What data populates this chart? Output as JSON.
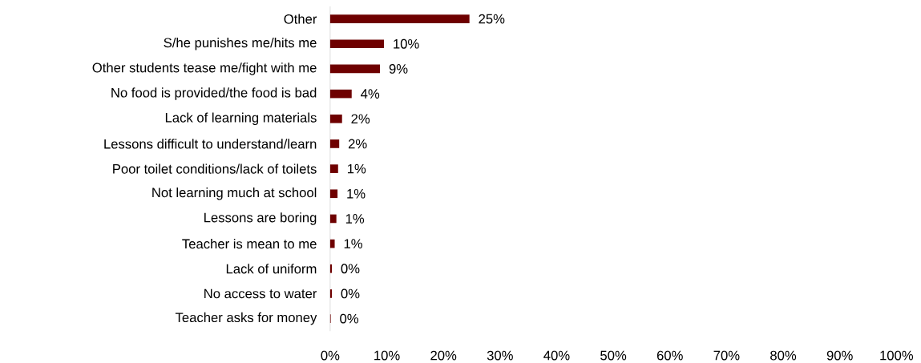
{
  "chart_data": {
    "type": "bar",
    "orientation": "horizontal",
    "color": "#6e0000",
    "categories": [
      "Other",
      "S/he punishes me/hits me",
      "Other students tease me/fight with me",
      "No food is provided/the food is bad",
      "Lack of learning materials",
      "Lessons difficult to understand/learn",
      "Poor toilet conditions/lack of toilets",
      "Not learning much at school",
      "Lessons are boring",
      "Teacher is mean to me",
      "Lack of uniform",
      "No access to water",
      "Teacher asks for money"
    ],
    "values": [
      24.6,
      9.5,
      8.8,
      3.8,
      2.1,
      1.6,
      1.4,
      1.3,
      1.1,
      0.8,
      0.3,
      0.3,
      0.1
    ],
    "value_labels": [
      "25%",
      "10%",
      "9%",
      "4%",
      "2%",
      "2%",
      "1%",
      "1%",
      "1%",
      "1%",
      "0%",
      "0%",
      "0%"
    ],
    "xlim": [
      0,
      100
    ],
    "xticks": [
      {
        "value": 0,
        "label": "0%"
      },
      {
        "value": 10,
        "label": "10%"
      },
      {
        "value": 20,
        "label": "20%"
      },
      {
        "value": 30,
        "label": "30%"
      },
      {
        "value": 40,
        "label": "40%"
      },
      {
        "value": 50,
        "label": "50%"
      },
      {
        "value": 60,
        "label": "60%"
      },
      {
        "value": 70,
        "label": "70%"
      },
      {
        "value": 80,
        "label": "80%"
      },
      {
        "value": 90,
        "label": "90%"
      },
      {
        "value": 100,
        "label": "100%"
      }
    ],
    "grid": false
  }
}
